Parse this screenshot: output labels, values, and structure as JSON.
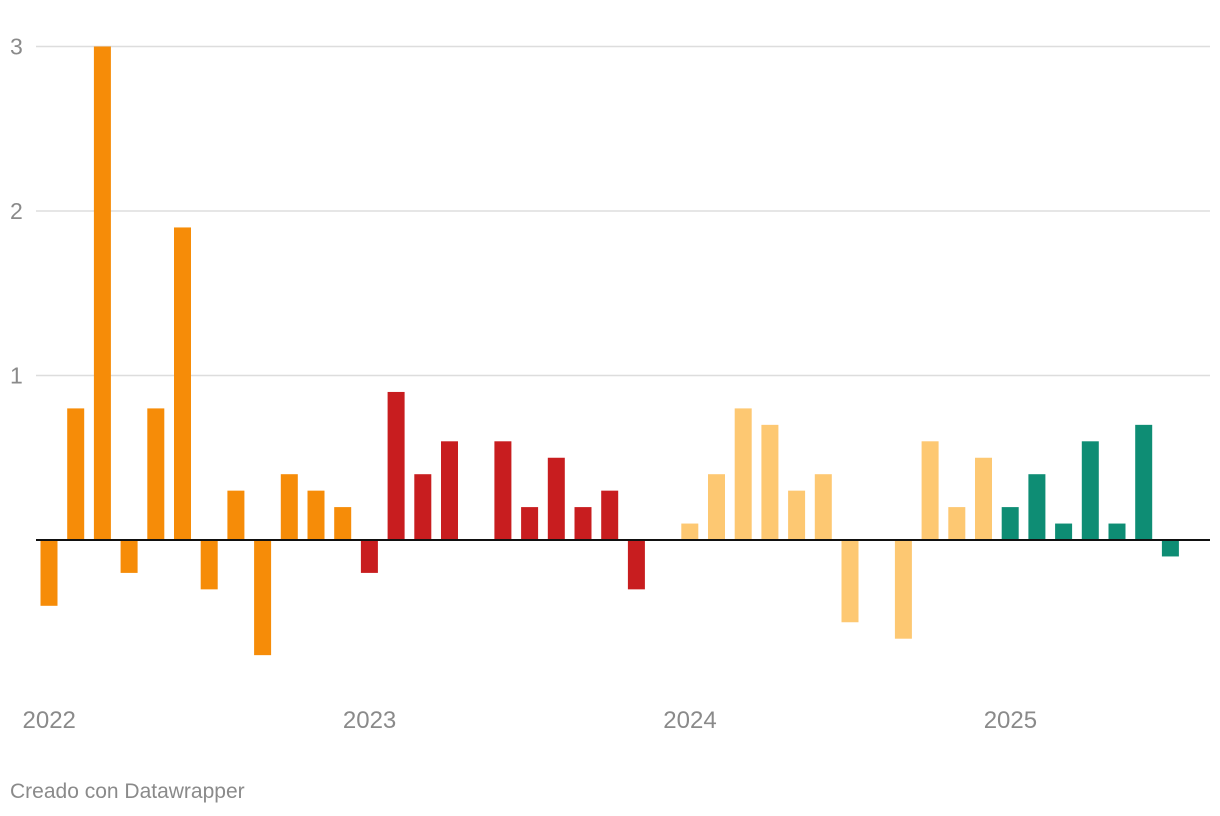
{
  "chart_data": {
    "type": "bar",
    "ylim": [
      -0.9,
      3
    ],
    "yticks": [
      1,
      2,
      3
    ],
    "grid": true,
    "x_labels": [
      {
        "label": "2022",
        "index": 0
      },
      {
        "label": "2023",
        "index": 12
      },
      {
        "label": "2024",
        "index": 24
      },
      {
        "label": "2025",
        "index": 36
      }
    ],
    "year_colors": {
      "2022": "#f68c08",
      "2023": "#c81d1f",
      "2024": "#fdc872",
      "2025": "#0e8d74"
    },
    "bars": [
      {
        "year": "2022",
        "value": -0.4
      },
      {
        "year": "2022",
        "value": 0.8
      },
      {
        "year": "2022",
        "value": 3.0
      },
      {
        "year": "2022",
        "value": -0.2
      },
      {
        "year": "2022",
        "value": 0.8
      },
      {
        "year": "2022",
        "value": 1.9
      },
      {
        "year": "2022",
        "value": -0.3
      },
      {
        "year": "2022",
        "value": 0.3
      },
      {
        "year": "2022",
        "value": -0.7
      },
      {
        "year": "2022",
        "value": 0.4
      },
      {
        "year": "2022",
        "value": 0.3
      },
      {
        "year": "2022",
        "value": 0.2
      },
      {
        "year": "2023",
        "value": -0.2
      },
      {
        "year": "2023",
        "value": 0.9
      },
      {
        "year": "2023",
        "value": 0.4
      },
      {
        "year": "2023",
        "value": 0.6
      },
      {
        "year": "2023",
        "value": 0.0
      },
      {
        "year": "2023",
        "value": 0.6
      },
      {
        "year": "2023",
        "value": 0.2
      },
      {
        "year": "2023",
        "value": 0.5
      },
      {
        "year": "2023",
        "value": 0.2
      },
      {
        "year": "2023",
        "value": 0.3
      },
      {
        "year": "2023",
        "value": -0.3
      },
      {
        "year": "2023",
        "value": 0.0
      },
      {
        "year": "2024",
        "value": 0.1
      },
      {
        "year": "2024",
        "value": 0.4
      },
      {
        "year": "2024",
        "value": 0.8
      },
      {
        "year": "2024",
        "value": 0.7
      },
      {
        "year": "2024",
        "value": 0.3
      },
      {
        "year": "2024",
        "value": 0.4
      },
      {
        "year": "2024",
        "value": -0.5
      },
      {
        "year": "2024",
        "value": 0.0
      },
      {
        "year": "2024",
        "value": -0.6
      },
      {
        "year": "2024",
        "value": 0.6
      },
      {
        "year": "2024",
        "value": 0.2
      },
      {
        "year": "2024",
        "value": 0.5
      },
      {
        "year": "2025",
        "value": 0.2
      },
      {
        "year": "2025",
        "value": 0.4
      },
      {
        "year": "2025",
        "value": 0.1
      },
      {
        "year": "2025",
        "value": 0.6
      },
      {
        "year": "2025",
        "value": 0.1
      },
      {
        "year": "2025",
        "value": 0.7
      },
      {
        "year": "2025",
        "value": -0.1
      }
    ]
  },
  "footer": {
    "credit": "Creado con Datawrapper"
  }
}
